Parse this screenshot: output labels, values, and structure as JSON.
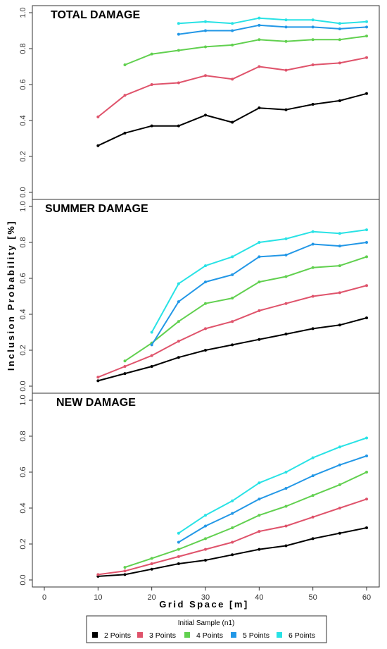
{
  "chart_data": {
    "type": "line",
    "layout": "3 stacked panels sharing x-axis",
    "xlabel": "Grid Space [m]",
    "ylabel": "Inclusion Probability [%]",
    "xlim": [
      0,
      60
    ],
    "xticks": [
      0,
      10,
      20,
      30,
      40,
      50,
      60
    ],
    "ylim": [
      0,
      1.0
    ],
    "yticks": [
      0.0,
      0.2,
      0.4,
      0.6,
      0.8,
      1.0
    ],
    "ytick_labels": [
      "0.0",
      "0.2",
      "0.4",
      "0.6",
      "0.8",
      "1.0"
    ],
    "grid": false,
    "legend": {
      "title": "Initial Sample (n1)",
      "placement": "bottom-center",
      "entries": [
        {
          "label": "2 Points",
          "color": "#000000"
        },
        {
          "label": "3 Points",
          "color": "#DF536B"
        },
        {
          "label": "4 Points",
          "color": "#61D04F"
        },
        {
          "label": "5 Points",
          "color": "#2297E6"
        },
        {
          "label": "6 Points",
          "color": "#28E2E5"
        }
      ]
    },
    "panels": [
      {
        "title": "TOTAL DAMAGE",
        "series": [
          {
            "name": "2 Points",
            "x": [
              10,
              15,
              20,
              25,
              30,
              35,
              40,
              45,
              50,
              55,
              60
            ],
            "y": [
              0.26,
              0.33,
              0.37,
              0.37,
              0.43,
              0.39,
              0.47,
              0.46,
              0.49,
              0.51,
              0.55
            ]
          },
          {
            "name": "3 Points",
            "x": [
              10,
              15,
              20,
              25,
              30,
              35,
              40,
              45,
              50,
              55,
              60
            ],
            "y": [
              0.42,
              0.54,
              0.6,
              0.61,
              0.65,
              0.63,
              0.7,
              0.68,
              0.71,
              0.72,
              0.75
            ]
          },
          {
            "name": "4 Points",
            "x": [
              15,
              20,
              25,
              30,
              35,
              40,
              45,
              50,
              55,
              60
            ],
            "y": [
              0.71,
              0.77,
              0.79,
              0.81,
              0.82,
              0.85,
              0.84,
              0.85,
              0.85,
              0.87
            ]
          },
          {
            "name": "5 Points",
            "x": [
              25,
              30,
              35,
              40,
              45,
              50,
              55,
              60
            ],
            "y": [
              0.88,
              0.9,
              0.9,
              0.93,
              0.92,
              0.92,
              0.91,
              0.92
            ]
          },
          {
            "name": "6 Points",
            "x": [
              25,
              30,
              35,
              40,
              45,
              50,
              55,
              60
            ],
            "y": [
              0.94,
              0.95,
              0.94,
              0.97,
              0.96,
              0.96,
              0.94,
              0.95
            ]
          }
        ]
      },
      {
        "title": "SUMMER DAMAGE",
        "series": [
          {
            "name": "2 Points",
            "x": [
              10,
              15,
              20,
              25,
              30,
              35,
              40,
              45,
              50,
              55,
              60
            ],
            "y": [
              0.03,
              0.07,
              0.11,
              0.16,
              0.2,
              0.23,
              0.26,
              0.29,
              0.32,
              0.34,
              0.38
            ]
          },
          {
            "name": "3 Points",
            "x": [
              10,
              15,
              20,
              25,
              30,
              35,
              40,
              45,
              50,
              55,
              60
            ],
            "y": [
              0.05,
              0.11,
              0.17,
              0.25,
              0.32,
              0.36,
              0.42,
              0.46,
              0.5,
              0.52,
              0.56
            ]
          },
          {
            "name": "4 Points",
            "x": [
              15,
              20,
              25,
              30,
              35,
              40,
              45,
              50,
              55,
              60
            ],
            "y": [
              0.14,
              0.24,
              0.36,
              0.46,
              0.49,
              0.58,
              0.61,
              0.66,
              0.67,
              0.72
            ]
          },
          {
            "name": "5 Points",
            "x": [
              20,
              25,
              30,
              35,
              40,
              45,
              50,
              55,
              60
            ],
            "y": [
              0.23,
              0.47,
              0.58,
              0.62,
              0.72,
              0.73,
              0.79,
              0.78,
              0.8
            ]
          },
          {
            "name": "6 Points",
            "x": [
              20,
              25,
              30,
              35,
              40,
              45,
              50,
              55,
              60
            ],
            "y": [
              0.3,
              0.57,
              0.67,
              0.72,
              0.8,
              0.82,
              0.86,
              0.85,
              0.87
            ]
          }
        ]
      },
      {
        "title": "NEW DAMAGE",
        "series": [
          {
            "name": "2 Points",
            "x": [
              10,
              15,
              20,
              25,
              30,
              35,
              40,
              45,
              50,
              55,
              60
            ],
            "y": [
              0.02,
              0.03,
              0.06,
              0.09,
              0.11,
              0.14,
              0.17,
              0.19,
              0.23,
              0.26,
              0.29
            ]
          },
          {
            "name": "3 Points",
            "x": [
              10,
              15,
              20,
              25,
              30,
              35,
              40,
              45,
              50,
              55,
              60
            ],
            "y": [
              0.03,
              0.05,
              0.09,
              0.13,
              0.17,
              0.21,
              0.27,
              0.3,
              0.35,
              0.4,
              0.45
            ]
          },
          {
            "name": "4 Points",
            "x": [
              15,
              20,
              25,
              30,
              35,
              40,
              45,
              50,
              55,
              60
            ],
            "y": [
              0.07,
              0.12,
              0.17,
              0.23,
              0.29,
              0.36,
              0.41,
              0.47,
              0.53,
              0.6
            ]
          },
          {
            "name": "5 Points",
            "x": [
              25,
              30,
              35,
              40,
              45,
              50,
              55,
              60
            ],
            "y": [
              0.21,
              0.3,
              0.37,
              0.45,
              0.51,
              0.58,
              0.64,
              0.69
            ]
          },
          {
            "name": "6 Points",
            "x": [
              25,
              30,
              35,
              40,
              45,
              50,
              55,
              60
            ],
            "y": [
              0.26,
              0.36,
              0.44,
              0.54,
              0.6,
              0.68,
              0.74,
              0.79
            ]
          }
        ]
      }
    ]
  }
}
